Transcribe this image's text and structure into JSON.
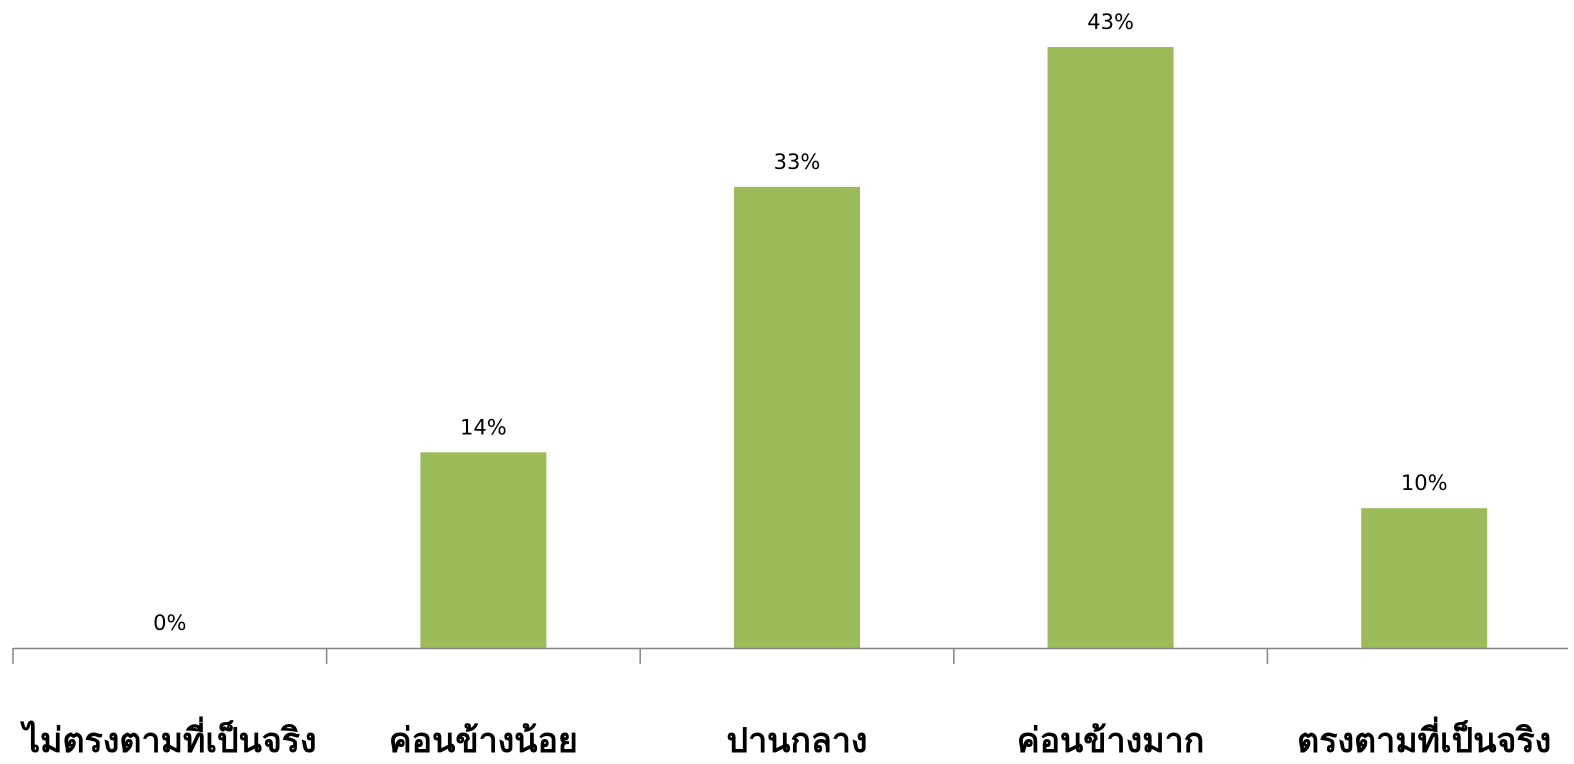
{
  "chart_data": {
    "type": "bar",
    "categories": [
      "ไม่ตรงตามที่เป็นจริง",
      "ค่อนข้างน้อย",
      "ปานกลาง",
      "ค่อนข้างมาก",
      "ตรงตามที่เป็นจริง"
    ],
    "values": [
      0,
      14,
      33,
      43,
      10
    ],
    "data_labels": [
      "0%",
      "14%",
      "33%",
      "43%",
      "10%"
    ],
    "value_unit": "%",
    "ylim": [
      0,
      45
    ],
    "grid": false,
    "legend": "none",
    "title": "",
    "xlabel": "",
    "ylabel": "",
    "colors": {
      "bar": "#9BBB59",
      "axis": "#868686"
    }
  }
}
